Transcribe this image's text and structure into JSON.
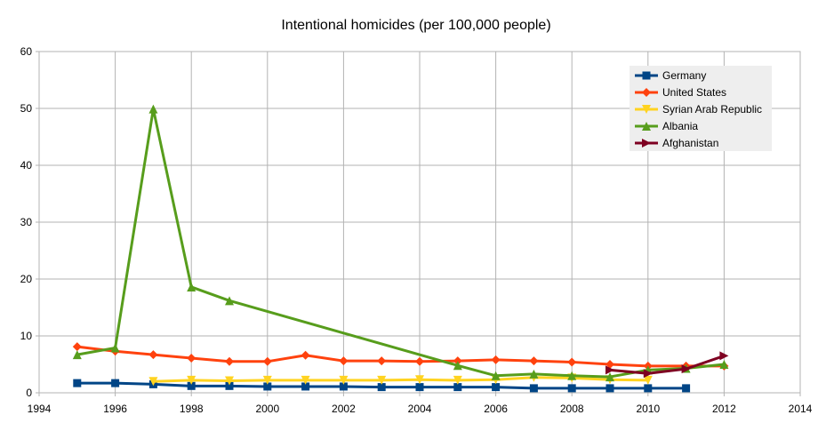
{
  "chart_data": {
    "type": "line",
    "title": "Intentional homicides (per 100,000 people)",
    "xlabel": "",
    "ylabel": "",
    "xlim": [
      1994,
      2014
    ],
    "ylim": [
      0,
      60
    ],
    "x_ticks": [
      "1994",
      "1996",
      "1998",
      "2000",
      "2002",
      "2004",
      "2006",
      "2008",
      "2010",
      "2012",
      "2014"
    ],
    "y_ticks": [
      "0",
      "10",
      "20",
      "30",
      "40",
      "50",
      "60"
    ],
    "grid": true,
    "legend_position": "top-right",
    "series": [
      {
        "name": "Germany",
        "color": "#004586",
        "marker": "square",
        "x": [
          1995,
          1996,
          1997,
          1998,
          1999,
          2000,
          2001,
          2002,
          2003,
          2004,
          2005,
          2006,
          2007,
          2008,
          2009,
          2010,
          2011
        ],
        "y": [
          1.7,
          1.7,
          1.5,
          1.2,
          1.2,
          1.1,
          1.1,
          1.1,
          1.0,
          1.0,
          1.0,
          1.0,
          0.8,
          0.8,
          0.8,
          0.8,
          0.8
        ]
      },
      {
        "name": "United States",
        "color": "#ff420e",
        "marker": "diamond",
        "x": [
          1995,
          1996,
          1997,
          1998,
          1999,
          2000,
          2001,
          2002,
          2003,
          2004,
          2005,
          2006,
          2007,
          2008,
          2009,
          2010,
          2011,
          2012
        ],
        "y": [
          8.1,
          7.3,
          6.7,
          6.1,
          5.5,
          5.5,
          6.6,
          5.6,
          5.6,
          5.5,
          5.6,
          5.8,
          5.6,
          5.4,
          5.0,
          4.7,
          4.7,
          4.7
        ]
      },
      {
        "name": "Syrian Arab Republic",
        "color": "#ffd320",
        "marker": "triangle-down",
        "x": [
          1997,
          1998,
          1999,
          2000,
          2001,
          2002,
          2003,
          2004,
          2005,
          2006,
          2007,
          2008,
          2009,
          2010
        ],
        "y": [
          2.0,
          2.2,
          2.1,
          2.2,
          2.2,
          2.2,
          2.2,
          2.3,
          2.2,
          2.3,
          2.7,
          2.6,
          2.3,
          2.2
        ]
      },
      {
        "name": "Albania",
        "color": "#579d1c",
        "marker": "triangle-up",
        "x": [
          1995,
          1996,
          1997,
          1998,
          1999,
          2005,
          2006,
          2007,
          2008,
          2009,
          2010,
          2011,
          2012
        ],
        "y": [
          6.7,
          7.9,
          49.9,
          18.6,
          16.2,
          4.8,
          3.0,
          3.3,
          3.0,
          2.8,
          4.0,
          4.3,
          5.0
        ]
      },
      {
        "name": "Afghanistan",
        "color": "#7e0021",
        "marker": "triangle-right",
        "x": [
          2009,
          2010,
          2011,
          2012
        ],
        "y": [
          4.0,
          3.4,
          4.2,
          6.5
        ]
      }
    ]
  }
}
